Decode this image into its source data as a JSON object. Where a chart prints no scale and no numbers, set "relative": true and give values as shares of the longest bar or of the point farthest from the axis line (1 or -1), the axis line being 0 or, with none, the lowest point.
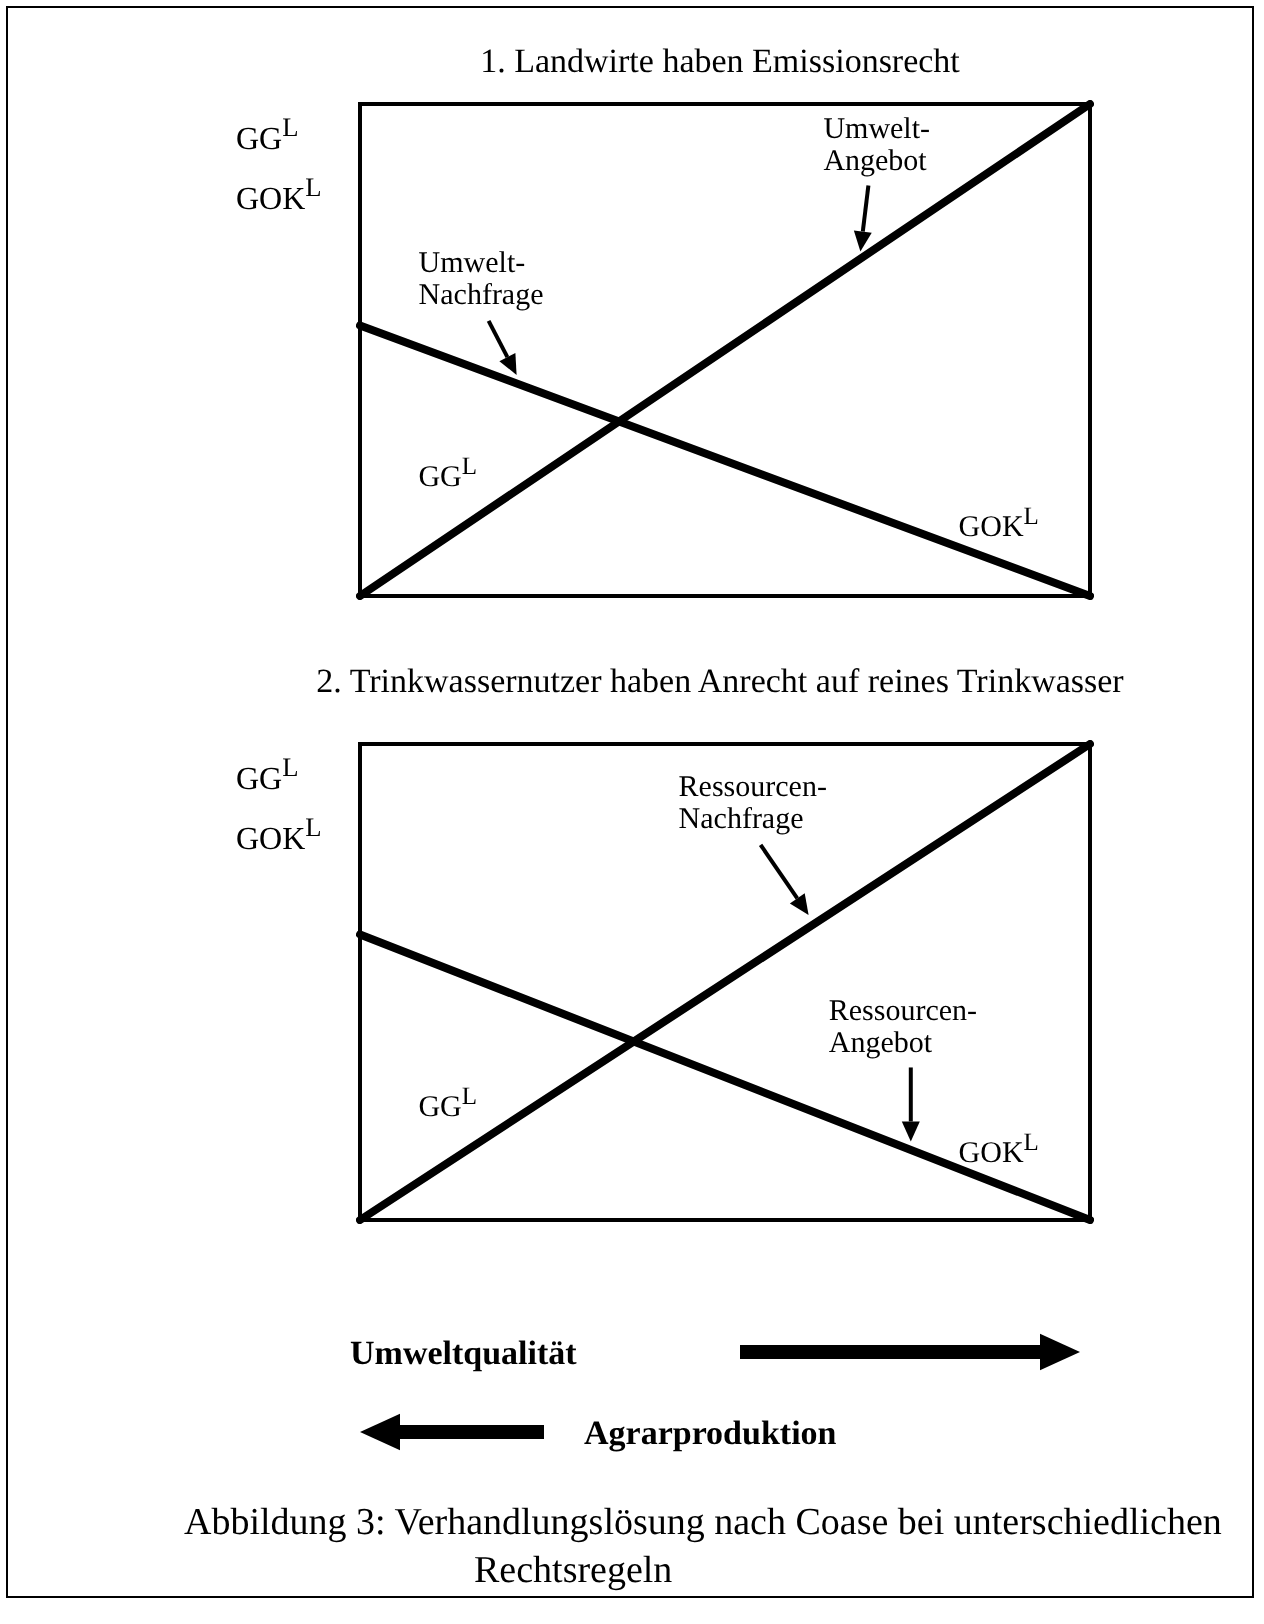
{
  "chart_data": [
    {
      "type": "line",
      "title": "1. Landwirte haben Emissionsrecht",
      "ylabel": "GG$^{L}$\nGOK$^{L}$",
      "relative": true,
      "categories": [
        null,
        null
      ],
      "series": [
        {
          "name": "Umwelt-Angebot",
          "color": "#000000",
          "values": [
            0,
            1
          ]
        },
        {
          "name": "Umwelt-Nachfrage",
          "color": "#000000",
          "values": [
            0.55,
            0
          ]
        }
      ],
      "annotations": [
        "GG$^{L}$",
        "GOK$^{L}$"
      ]
    },
    {
      "type": "line",
      "title": "2. Trinkwassernutzer haben Anrecht auf reines Trinkwasser",
      "ylabel": "GG$^{L}$\nGOK$^{L}$",
      "relative": true,
      "categories": [
        null,
        null
      ],
      "series": [
        {
          "name": "Ressourcen-Nachfrage",
          "color": "#000000",
          "values": [
            0,
            1
          ]
        },
        {
          "name": "Ressourcen-Angebot",
          "color": "#000000",
          "values": [
            0.6,
            0
          ]
        }
      ],
      "annotations": [
        "GG$^{L}$",
        "GOK$^{L}$",
        "Umweltqualität",
        "Agrarproduktion",
        "Abbildung 3: Verhandlungslösung nach Coase bei unterschiedlichen Rechtsregeln"
      ]
    }
  ]
}
